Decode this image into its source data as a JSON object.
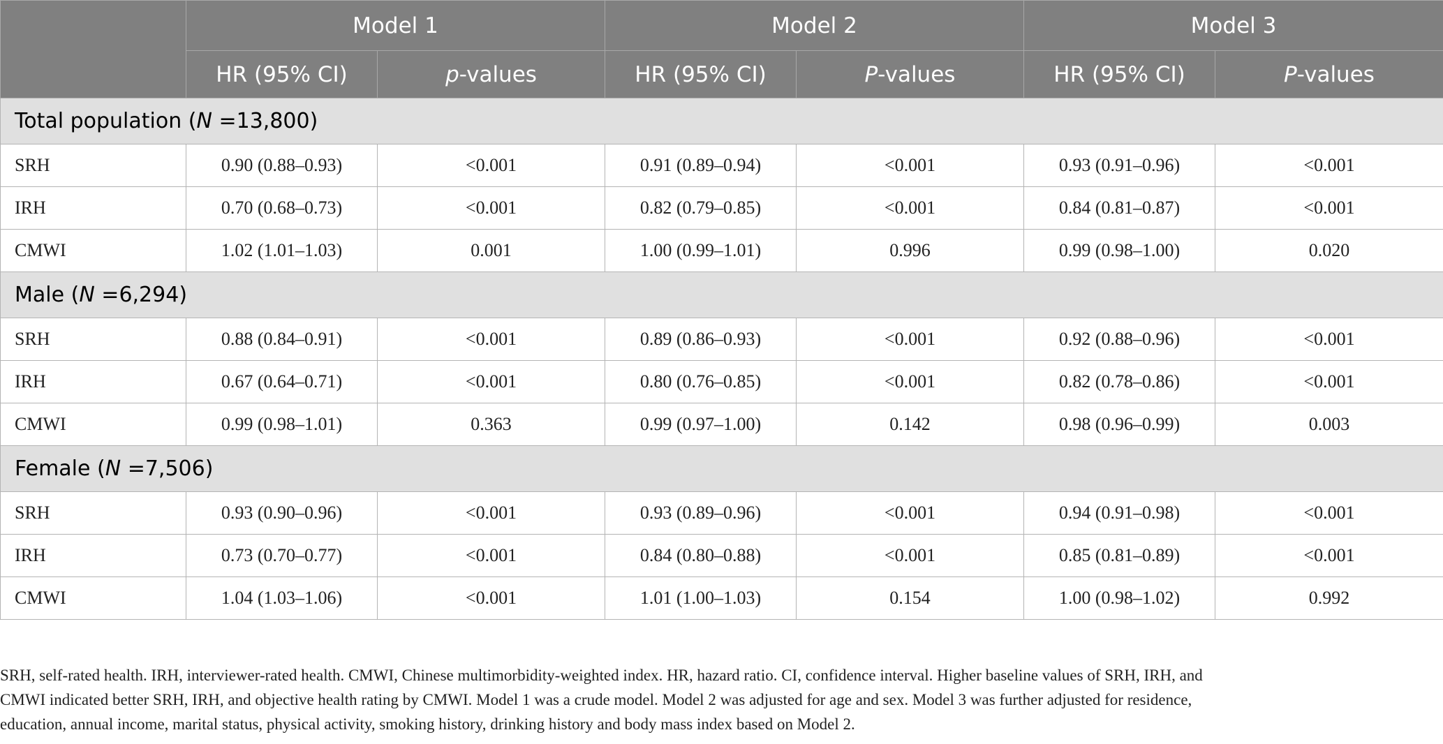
{
  "table": {
    "header": {
      "models": [
        "Model 1",
        "Model 2",
        "Model 3"
      ],
      "columns": [
        "HR (95% CI)",
        {
          "italic": "p",
          "rest": "-values"
        },
        "HR (95% CI)",
        {
          "italic": "P",
          "rest": "-values"
        },
        "HR (95% CI)",
        {
          "italic": "P",
          "rest": "-values"
        }
      ]
    },
    "sections": [
      {
        "label": {
          "before": "Total population (",
          "italic": "N",
          "after": " =13,800)"
        },
        "rows": [
          [
            "SRH",
            "0.90 (0.88–0.93)",
            "<0.001",
            "0.91 (0.89–0.94)",
            "<0.001",
            "0.93 (0.91–0.96)",
            "<0.001"
          ],
          [
            "IRH",
            "0.70 (0.68–0.73)",
            "<0.001",
            "0.82 (0.79–0.85)",
            "<0.001",
            "0.84 (0.81–0.87)",
            "<0.001"
          ],
          [
            "CMWI",
            "1.02 (1.01–1.03)",
            "0.001",
            "1.00 (0.99–1.01)",
            "0.996",
            "0.99 (0.98–1.00)",
            "0.020"
          ]
        ]
      },
      {
        "label": {
          "before": "Male (",
          "italic": "N",
          "after": " =6,294)"
        },
        "rows": [
          [
            "SRH",
            "0.88 (0.84–0.91)",
            "<0.001",
            "0.89 (0.86–0.93)",
            "<0.001",
            "0.92 (0.88–0.96)",
            "<0.001"
          ],
          [
            "IRH",
            "0.67 (0.64–0.71)",
            "<0.001",
            "0.80 (0.76–0.85)",
            "<0.001",
            "0.82 (0.78–0.86)",
            "<0.001"
          ],
          [
            "CMWI",
            "0.99 (0.98–1.01)",
            "0.363",
            "0.99 (0.97–1.00)",
            "0.142",
            "0.98 (0.96–0.99)",
            "0.003"
          ]
        ]
      },
      {
        "label": {
          "before": "Female (",
          "italic": "N",
          "after": " =7,506)"
        },
        "rows": [
          [
            "SRH",
            "0.93 (0.90–0.96)",
            "<0.001",
            "0.93 (0.89–0.96)",
            "<0.001",
            "0.94 (0.91–0.98)",
            "<0.001"
          ],
          [
            "IRH",
            "0.73 (0.70–0.77)",
            "<0.001",
            "0.84 (0.80–0.88)",
            "<0.001",
            "0.85 (0.81–0.89)",
            "<0.001"
          ],
          [
            "CMWI",
            "1.04 (1.03–1.06)",
            "<0.001",
            "1.01 (1.00–1.03)",
            "0.154",
            "1.00 (0.98–1.02)",
            "0.992"
          ]
        ]
      }
    ]
  },
  "footnote": [
    "SRH, self-rated health. IRH, interviewer-rated health. CMWI, Chinese multimorbidity-weighted index. HR, hazard ratio. CI, confidence interval. Higher baseline values of SRH, IRH, and",
    "CMWI indicated better SRH, IRH, and objective health rating by CMWI. Model 1 was a crude model. Model 2 was adjusted for age and sex. Model 3 was further adjusted for residence,",
    "education, annual income, marital status, physical activity, smoking history, drinking history and body mass index based on Model 2."
  ]
}
